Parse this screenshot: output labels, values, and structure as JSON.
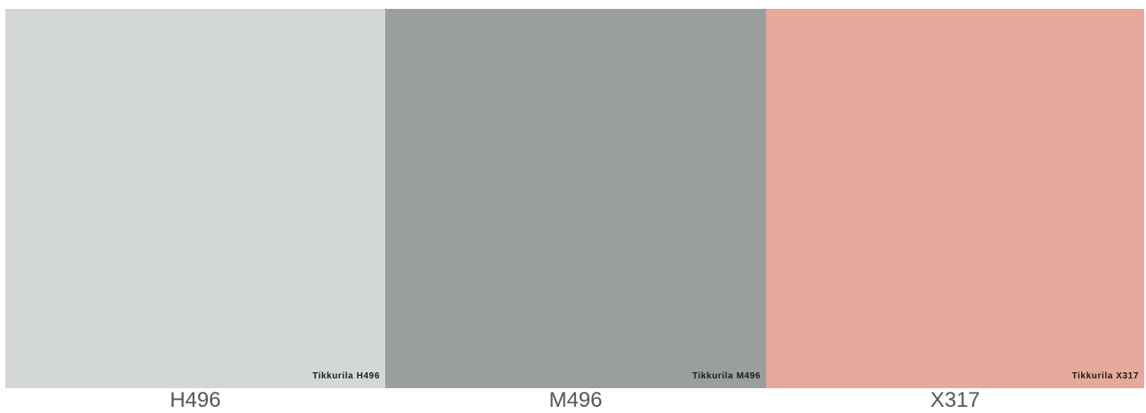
{
  "swatches": [
    {
      "code": "H496",
      "caption": "Tikkurila H496",
      "color": "#d3d7d8"
    },
    {
      "code": "M496",
      "caption": "Tikkurila M496",
      "color": "#9a9e9d"
    },
    {
      "code": "X317",
      "caption": "Tikkurila X317",
      "color": "#e7a99b"
    }
  ]
}
